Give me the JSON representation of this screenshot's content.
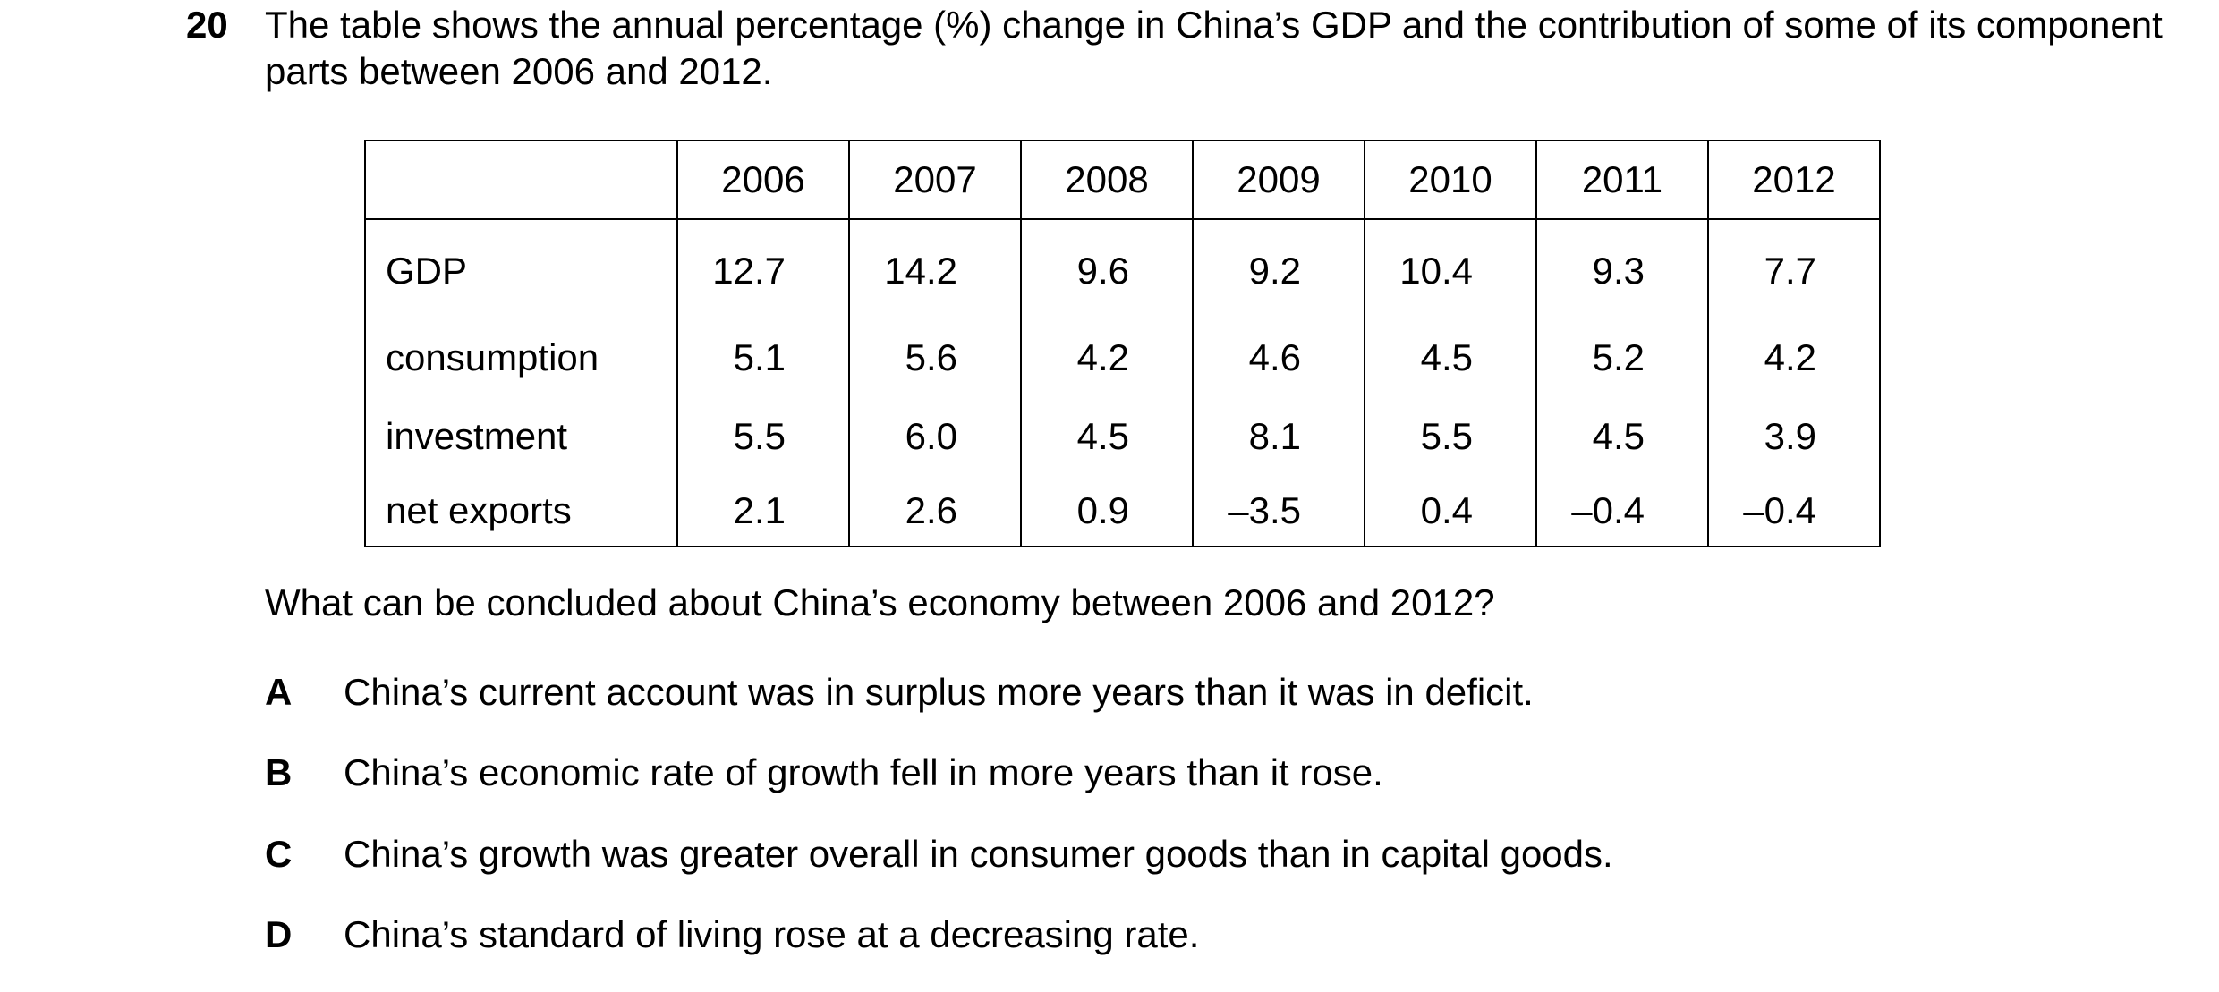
{
  "question": {
    "number": "20",
    "stem": "The table shows the annual percentage (%) change in China’s GDP and the contribution of some of its component parts between 2006 and 2012.",
    "prompt": "What can be concluded about China’s economy between 2006 and 2012?"
  },
  "table": {
    "corner_label": "",
    "years": [
      "2006",
      "2007",
      "2008",
      "2009",
      "2010",
      "2011",
      "2012"
    ],
    "rows": [
      {
        "label": "GDP",
        "values": [
          "12.7",
          "14.2",
          "9.6",
          "9.2",
          "10.4",
          "9.3",
          "7.7"
        ]
      },
      {
        "label": "consumption",
        "values": [
          "5.1",
          "5.6",
          "4.2",
          "4.6",
          "4.5",
          "5.2",
          "4.2"
        ]
      },
      {
        "label": "investment",
        "values": [
          "5.5",
          "6.0",
          "4.5",
          "8.1",
          "5.5",
          "4.5",
          "3.9"
        ]
      },
      {
        "label": "net exports",
        "values": [
          "2.1",
          "2.6",
          "0.9",
          "–3.5",
          "0.4",
          "–0.4",
          "–0.4"
        ]
      }
    ]
  },
  "options": [
    {
      "letter": "A",
      "text": "China’s current account was in surplus more years than it was in deficit."
    },
    {
      "letter": "B",
      "text": "China’s economic rate of growth fell in more years than it rose."
    },
    {
      "letter": "C",
      "text": "China’s growth was greater overall in consumer goods than in capital goods."
    },
    {
      "letter": "D",
      "text": "China’s standard of living rose at a decreasing rate."
    }
  ]
}
